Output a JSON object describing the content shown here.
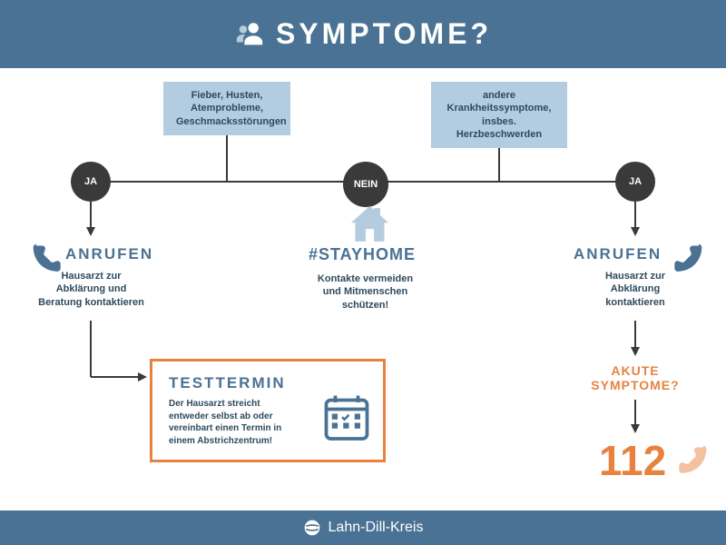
{
  "colors": {
    "header_bg": "#4a7294",
    "box_bg": "#b3cce0",
    "circle_bg": "#3a3a3a",
    "accent_blue": "#4a7294",
    "accent_orange": "#e8833f",
    "text_dark": "#2d4a5e",
    "icon_light": "#b3cce0",
    "white": "#ffffff"
  },
  "header": {
    "title": "SYMPTOME?"
  },
  "footer": {
    "org": "Lahn-Dill-Kreis"
  },
  "boxes": {
    "left": "Fieber, Husten,\nAtemprobleme,\nGeschmacksstörungen",
    "right": "andere\nKrankheitssymptome,\ninsbes. Herzbeschwerden"
  },
  "circles": {
    "ja": "JA",
    "nein": "NEIN",
    "ja2": "JA"
  },
  "center": {
    "title": "#STAYHOME",
    "text": "Kontakte vermeiden\nund Mitmenschen\nschützen!"
  },
  "left_path": {
    "title": "ANRUFEN",
    "text": "Hausarzt zur\nAbklärung und\nBeratung kontaktieren"
  },
  "right_path": {
    "title": "ANRUFEN",
    "text": "Hausarzt zur\nAbklärung\nkontaktieren",
    "akute": "AKUTE\nSYMPTOME?",
    "emergency": "112"
  },
  "testbox": {
    "title": "TESTTERMIN",
    "text": "Der Hausarzt streicht\nentweder selbst ab oder\nvereinbart einen Termin in\neinem Abstrichzentrum!"
  },
  "flowchart": {
    "line_color": "#3a3a3a",
    "line_width": 2
  }
}
